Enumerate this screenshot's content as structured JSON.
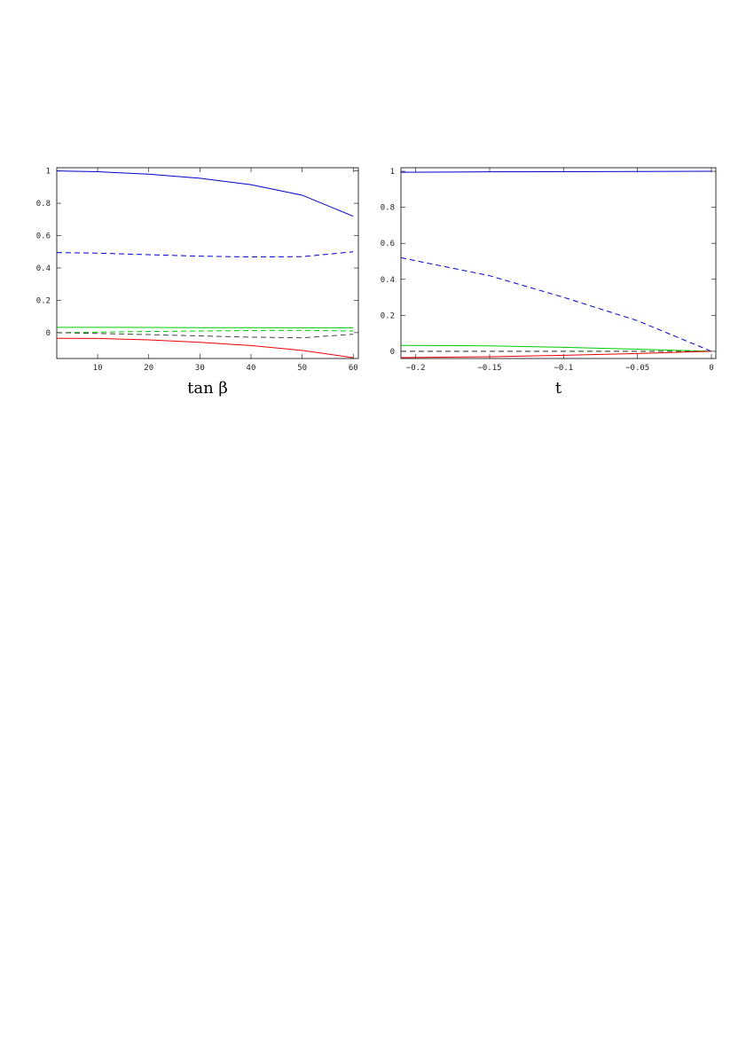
{
  "chart_data": [
    {
      "type": "line",
      "xlabel": "tan β",
      "xlim": [
        2,
        61
      ],
      "ylim": [
        -0.16,
        1.02
      ],
      "xticks": [
        10,
        20,
        30,
        40,
        50,
        60
      ],
      "xtick_labels": [
        "10",
        "20",
        "30",
        "40",
        "50",
        "60"
      ],
      "yticks": [
        0,
        0.2,
        0.4,
        0.6,
        0.8,
        1
      ],
      "ytick_labels": [
        "0",
        "0.2",
        "0.4",
        "0.6",
        "0.8",
        "1"
      ],
      "series": [
        {
          "color": "#0000cc",
          "dash": "solid",
          "x": [
            2,
            10,
            20,
            30,
            40,
            50,
            60
          ],
          "y": [
            1.0,
            0.995,
            0.98,
            0.955,
            0.915,
            0.85,
            0.72
          ]
        },
        {
          "color": "#0000cc",
          "dash": "dashed",
          "x": [
            2,
            10,
            20,
            30,
            40,
            50,
            60
          ],
          "y": [
            0.495,
            0.492,
            0.482,
            0.473,
            0.468,
            0.47,
            0.5
          ]
        },
        {
          "color": "#00cc00",
          "dash": "solid",
          "x": [
            2,
            10,
            20,
            30,
            40,
            50,
            60
          ],
          "y": [
            0.033,
            0.033,
            0.032,
            0.031,
            0.031,
            0.03,
            0.03
          ]
        },
        {
          "color": "#00cc00",
          "dash": "dashed",
          "x": [
            2,
            10,
            20,
            30,
            40,
            50,
            60
          ],
          "y": [
            0.0,
            0.003,
            0.007,
            0.01,
            0.013,
            0.014,
            0.01
          ]
        },
        {
          "color": "#444444",
          "dash": "dashed",
          "x": [
            2,
            10,
            20,
            30,
            40,
            50,
            60
          ],
          "y": [
            0.0,
            -0.005,
            -0.012,
            -0.02,
            -0.028,
            -0.032,
            -0.01
          ]
        },
        {
          "color": "#ee0000",
          "dash": "solid",
          "x": [
            2,
            10,
            20,
            30,
            40,
            50,
            60
          ],
          "y": [
            -0.035,
            -0.036,
            -0.045,
            -0.06,
            -0.08,
            -0.11,
            -0.155
          ]
        }
      ]
    },
    {
      "type": "line",
      "xlabel": "t",
      "xlim": [
        -0.21,
        0.003
      ],
      "ylim": [
        -0.04,
        1.02
      ],
      "xticks": [
        -0.2,
        -0.15,
        -0.1,
        -0.05,
        0
      ],
      "xtick_labels": [
        "−0.2",
        "−0.15",
        "−0.1",
        "−0.05",
        "0"
      ],
      "yticks": [
        0,
        0.2,
        0.4,
        0.6,
        0.8,
        1
      ],
      "ytick_labels": [
        "0",
        "0.2",
        "0.4",
        "0.6",
        "0.8",
        "1"
      ],
      "series": [
        {
          "color": "#0000cc",
          "dash": "solid",
          "x": [
            -0.21,
            -0.15,
            -0.1,
            -0.05,
            0
          ],
          "y": [
            0.995,
            0.997,
            0.998,
            0.999,
            1.0
          ]
        },
        {
          "color": "#0000cc",
          "dash": "dashed",
          "x": [
            -0.21,
            -0.15,
            -0.1,
            -0.05,
            0
          ],
          "y": [
            0.52,
            0.42,
            0.3,
            0.17,
            0.0
          ]
        },
        {
          "color": "#00cc00",
          "dash": "solid",
          "x": [
            -0.21,
            -0.15,
            -0.1,
            -0.05,
            0
          ],
          "y": [
            0.033,
            0.03,
            0.022,
            0.012,
            0.0
          ]
        },
        {
          "color": "#00cc00",
          "dash": "dashed",
          "x": [
            -0.21,
            -0.15,
            -0.1,
            -0.05,
            0
          ],
          "y": [
            0.0,
            0.0,
            0.0,
            0.0,
            0.0
          ]
        },
        {
          "color": "#444444",
          "dash": "dashed",
          "x": [
            -0.21,
            -0.15,
            -0.1,
            -0.05,
            0
          ],
          "y": [
            0.0,
            0.0,
            0.0,
            0.0,
            0.0
          ]
        },
        {
          "color": "#ee0000",
          "dash": "solid",
          "x": [
            -0.21,
            -0.15,
            -0.1,
            -0.05,
            0
          ],
          "y": [
            -0.035,
            -0.03,
            -0.022,
            -0.012,
            0.0
          ]
        }
      ]
    }
  ]
}
